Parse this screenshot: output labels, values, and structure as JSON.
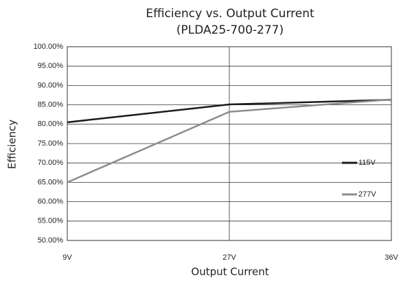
{
  "chart_data": {
    "type": "line",
    "title": "Efficiency vs. Output Current",
    "subtitle": "(PLDA25-700-277)",
    "x_label": "Output Current",
    "y_label": "Efficiency",
    "categories": [
      "9V",
      "27V",
      "36V"
    ],
    "series": [
      {
        "name": "115V",
        "color": "#1a1a1a",
        "values": [
          80.5,
          85.1,
          86.3
        ]
      },
      {
        "name": "277V",
        "color": "#8c8c8c",
        "values": [
          65,
          83.2,
          86.4
        ]
      }
    ],
    "ylim": [
      50,
      100
    ],
    "yticks": [
      {
        "value": 50,
        "label": "50.00%"
      },
      {
        "value": 55,
        "label": "55.00%"
      },
      {
        "value": 60,
        "label": "60.00%"
      },
      {
        "value": 65,
        "label": "65.00%"
      },
      {
        "value": 70,
        "label": "70.00%"
      },
      {
        "value": 75,
        "label": "75.00%"
      },
      {
        "value": 80,
        "label": "80.00%"
      },
      {
        "value": 85,
        "label": "85.00%"
      },
      {
        "value": 90,
        "label": "90.00%"
      },
      {
        "value": 95,
        "label": "95.00%"
      },
      {
        "value": 100,
        "label": "100.00%"
      }
    ],
    "grid": true,
    "legend": "right"
  }
}
